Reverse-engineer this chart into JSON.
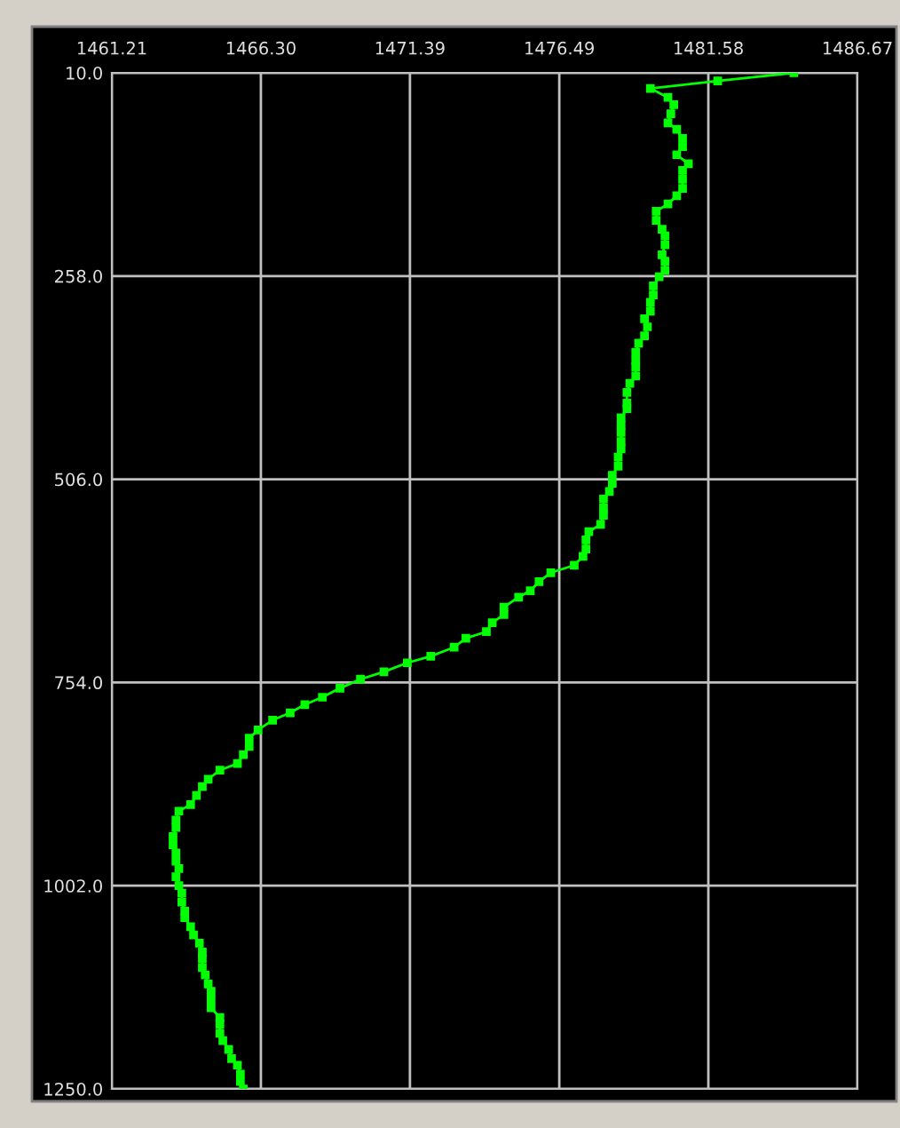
{
  "chart_data": {
    "type": "line",
    "marker": "square",
    "line_style": "solid",
    "grid": true,
    "xlim": [
      1461.21,
      1486.67
    ],
    "ylim": [
      1250,
      10
    ],
    "xticks": [
      1461.21,
      {
        "value": 1466.3,
        "label": "1466.30"
      },
      1471.39,
      1476.49,
      1481.58,
      1486.67
    ],
    "yticks": [
      {
        "value": 10,
        "label": "10.0"
      },
      {
        "value": 258,
        "label": "258.0"
      },
      {
        "value": 506,
        "label": "506.0"
      },
      {
        "value": 754,
        "label": "754.0"
      },
      {
        "value": 1002,
        "label": "1002.0"
      },
      {
        "value": 1250,
        "label": "1250.0"
      }
    ],
    "series": [
      {
        "color": "#00ff00",
        "x": [
          1484.5,
          1481.9,
          1479.6,
          1480.2,
          1480.4,
          1480.3,
          1480.2,
          1480.5,
          1480.7,
          1480.7,
          1480.5,
          1480.9,
          1480.7,
          1480.7,
          1480.7,
          1480.5,
          1480.2,
          1479.8,
          1479.8,
          1480.0,
          1480.1,
          1480.1,
          1480.0,
          1480.1,
          1480.1,
          1479.9,
          1479.7,
          1479.7,
          1479.6,
          1479.6,
          1479.4,
          1479.5,
          1479.4,
          1479.2,
          1479.1,
          1479.1,
          1479.1,
          1479.1,
          1478.9,
          1478.8,
          1478.8,
          1478.8,
          1478.6,
          1478.6,
          1478.6,
          1478.6,
          1478.6,
          1478.5,
          1478.5,
          1478.3,
          1478.3,
          1478.2,
          1478.0,
          1478.0,
          1478.0,
          1477.9,
          1477.5,
          1477.4,
          1477.4,
          1477.3,
          1477.0,
          1476.2,
          1475.8,
          1475.5,
          1475.1,
          1474.6,
          1474.6,
          1474.2,
          1474.0,
          1473.3,
          1472.9,
          1472.1,
          1471.3,
          1470.5,
          1469.7,
          1469.0,
          1468.4,
          1467.8,
          1467.3,
          1466.7,
          1466.2,
          1465.9,
          1465.9,
          1465.7,
          1465.5,
          1464.9,
          1464.5,
          1464.3,
          1464.1,
          1463.9,
          1463.5,
          1463.4,
          1463.4,
          1463.3,
          1463.3,
          1463.4,
          1463.4,
          1463.5,
          1463.4,
          1463.5,
          1463.6,
          1463.6,
          1463.7,
          1463.7,
          1463.9,
          1464.0,
          1464.2,
          1464.3,
          1464.3,
          1464.3,
          1464.4,
          1464.5,
          1464.6,
          1464.6,
          1464.6,
          1464.9,
          1464.9,
          1464.9,
          1465.0,
          1465.2,
          1465.3,
          1465.5,
          1465.6,
          1465.6,
          1465.7
        ],
        "values": [
          10,
          20,
          29,
          40,
          49,
          60,
          71,
          79,
          90,
          100,
          110,
          121,
          129,
          140,
          151,
          160,
          170,
          179,
          190,
          201,
          209,
          220,
          232,
          240,
          251,
          259,
          270,
          281,
          290,
          301,
          310,
          320,
          331,
          340,
          351,
          361,
          369,
          380,
          389,
          400,
          413,
          420,
          431,
          440,
          449,
          460,
          469,
          479,
          490,
          501,
          511,
          521,
          530,
          541,
          550,
          561,
          570,
          580,
          591,
          600,
          611,
          620,
          631,
          642,
          650,
          662,
          671,
          681,
          692,
          700,
          711,
          722,
          730,
          741,
          750,
          761,
          772,
          781,
          791,
          800,
          812,
          822,
          832,
          842,
          853,
          861,
          872,
          881,
          892,
          903,
          911,
          922,
          931,
          942,
          952,
          962,
          972,
          981,
          991,
          1002,
          1011,
          1022,
          1033,
          1041,
          1052,
          1062,
          1072,
          1083,
          1091,
          1102,
          1111,
          1122,
          1131,
          1141,
          1151,
          1163,
          1171,
          1182,
          1191,
          1202,
          1213,
          1221,
          1232,
          1241,
          1250
        ]
      }
    ]
  }
}
